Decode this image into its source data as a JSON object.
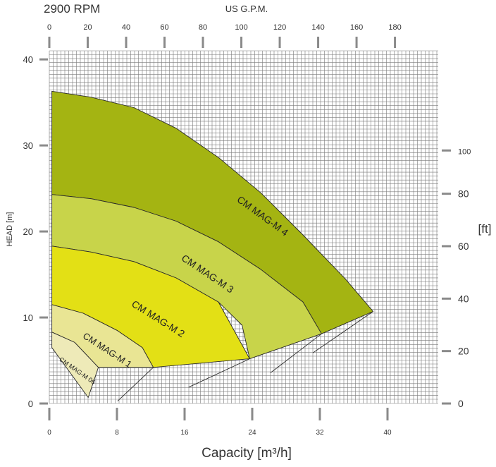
{
  "chart_data": {
    "type": "area",
    "title": "2900 RPM",
    "top_axis_label": "US G.P.M.",
    "top_ticks": [
      "0",
      "20",
      "40",
      "60",
      "80",
      "100",
      "120",
      "140",
      "160",
      "180"
    ],
    "xlabel": "Capacity  [m³/h]",
    "xticks": [
      "0",
      "8",
      "16",
      "24",
      "32",
      "40"
    ],
    "xlim": [
      0,
      46
    ],
    "ylabel": "HEAD [m]",
    "yticks": [
      "0",
      "10",
      "20",
      "30",
      "40"
    ],
    "ylim": [
      0,
      41
    ],
    "right_axis_label": "[ft]",
    "right_ticks": [
      "0",
      "20",
      "40",
      "60",
      "80",
      "100"
    ],
    "grid": true,
    "series": [
      {
        "name": "CM MAG-M 4",
        "color": "#a4b412",
        "curve": [
          [
            0.3,
            36.3
          ],
          [
            5,
            35.6
          ],
          [
            10,
            34.4
          ],
          [
            15,
            32
          ],
          [
            20,
            28.6
          ],
          [
            25,
            24.5
          ],
          [
            30,
            19.6
          ],
          [
            35,
            14.5
          ],
          [
            38.3,
            10.7
          ]
        ],
        "bottom": [
          [
            0.3,
            24.3
          ],
          [
            5,
            23.8
          ],
          [
            10,
            22.8
          ],
          [
            15,
            21.2
          ],
          [
            20,
            18.8
          ],
          [
            25,
            15.6
          ],
          [
            30,
            11.8
          ],
          [
            32.2,
            8.1
          ]
        ],
        "base": [
          [
            32.2,
            8.1
          ],
          [
            31.2,
            5.9
          ],
          [
            38.3,
            10.7
          ]
        ]
      },
      {
        "name": "CM MAG-M 3",
        "color": "#c8d44a",
        "curve": [
          [
            0.3,
            24.3
          ],
          [
            5,
            23.8
          ],
          [
            10,
            22.8
          ],
          [
            15,
            21.2
          ],
          [
            20,
            18.8
          ],
          [
            25,
            15.6
          ],
          [
            30,
            11.8
          ],
          [
            32.2,
            8.1
          ]
        ],
        "bottom": [
          [
            0.3,
            18.3
          ],
          [
            5,
            17.6
          ],
          [
            10,
            16.5
          ],
          [
            15,
            14.6
          ],
          [
            20,
            11.8
          ],
          [
            22.8,
            9.1
          ],
          [
            23.7,
            5.2
          ]
        ],
        "base": [
          [
            23.7,
            5.2
          ],
          [
            26.2,
            3.6
          ],
          [
            32.2,
            8.1
          ]
        ]
      },
      {
        "name": "CM MAG-M 2",
        "color": "#e3e015",
        "curve": [
          [
            0.3,
            18.3
          ],
          [
            5,
            17.6
          ],
          [
            10,
            16.5
          ],
          [
            15,
            14.6
          ],
          [
            20,
            11.8
          ],
          [
            23.7,
            5.2
          ]
        ],
        "bottom": [
          [
            0.3,
            11.5
          ],
          [
            4,
            10.5
          ],
          [
            8,
            8.5
          ],
          [
            11,
            6.5
          ],
          [
            12.3,
            4.2
          ]
        ],
        "base": [
          [
            12.3,
            4.2
          ],
          [
            16.5,
            1.9
          ],
          [
            23.7,
            5.2
          ]
        ]
      },
      {
        "name": "CM MAG-M 1",
        "color": "#e9e594",
        "curve": [
          [
            0.3,
            11.5
          ],
          [
            4,
            10.5
          ],
          [
            8,
            8.5
          ],
          [
            11,
            6.5
          ],
          [
            12.3,
            4.2
          ]
        ],
        "bottom": [
          [
            0.3,
            8.3
          ],
          [
            3,
            7.1
          ],
          [
            5.8,
            4.2
          ]
        ],
        "base": [
          [
            5.8,
            4.2
          ],
          [
            8.1,
            0.3
          ],
          [
            12.3,
            4.2
          ]
        ]
      },
      {
        "name": "CM MAG-M 06",
        "color": "#eeeab8",
        "curve": [
          [
            0.3,
            8.3
          ],
          [
            3,
            7.1
          ],
          [
            5.8,
            4.2
          ]
        ],
        "bottom": [
          [
            0.3,
            6.5
          ]
        ],
        "base": [
          [
            5.8,
            4.2
          ],
          [
            4.6,
            0.7
          ],
          [
            0.3,
            6.5
          ]
        ]
      }
    ]
  }
}
